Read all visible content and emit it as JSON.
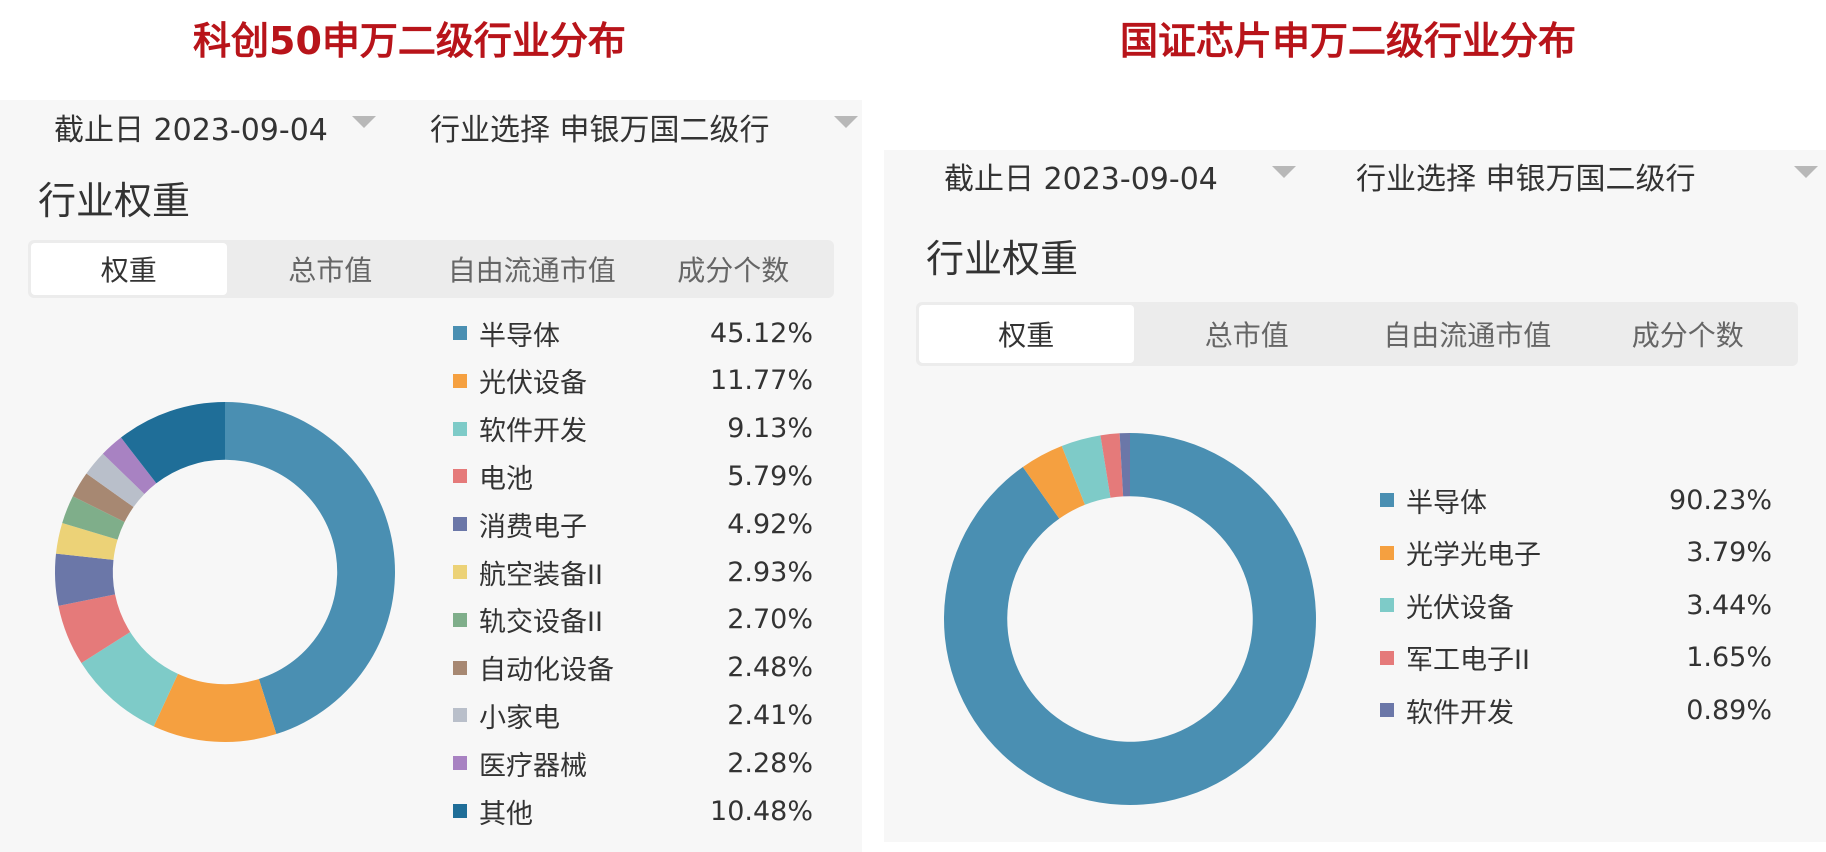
{
  "left": {
    "heading": "科创50申万二级行业分布",
    "date_filter": "截止日 2023-09-04",
    "industry_filter": "行业选择 申银万国二级行",
    "section_title": "行业权重",
    "tabs": [
      "权重",
      "总市值",
      "自由流通市值",
      "成分个数"
    ],
    "active_tab": 0
  },
  "right": {
    "heading": "国证芯片申万二级行业分布",
    "date_filter": "截止日 2023-09-04",
    "industry_filter": "行业选择 申银万国二级行",
    "section_title": "行业权重",
    "tabs": [
      "权重",
      "总市值",
      "自由流通市值",
      "成分个数"
    ],
    "active_tab": 0
  },
  "chart_data": [
    {
      "type": "pie",
      "title": "科创50申万二级行业分布",
      "categories": [
        "半导体",
        "光伏设备",
        "软件开发",
        "电池",
        "消费电子",
        "航空装备II",
        "轨交设备II",
        "自动化设备",
        "小家电",
        "医疗器械",
        "其他"
      ],
      "values": [
        45.12,
        11.77,
        9.13,
        5.79,
        4.92,
        2.93,
        2.7,
        2.48,
        2.41,
        2.28,
        10.48
      ],
      "labels": [
        "45.12%",
        "11.77%",
        "9.13%",
        "5.79%",
        "4.92%",
        "2.93%",
        "2.70%",
        "2.48%",
        "2.41%",
        "2.28%",
        "10.48%"
      ],
      "colors": [
        "#4a8fb2",
        "#f5a040",
        "#7ecbc8",
        "#e57a7a",
        "#6b77a8",
        "#ecd277",
        "#7fae8a",
        "#a78872",
        "#b9bfca",
        "#a882c2",
        "#1f6e98"
      ],
      "legend_position": "right"
    },
    {
      "type": "pie",
      "title": "国证芯片申万二级行业分布",
      "categories": [
        "半导体",
        "光学光电子",
        "光伏设备",
        "军工电子II",
        "软件开发"
      ],
      "values": [
        90.23,
        3.79,
        3.44,
        1.65,
        0.89
      ],
      "labels": [
        "90.23%",
        "3.79%",
        "3.44%",
        "1.65%",
        "0.89%"
      ],
      "colors": [
        "#4a8fb2",
        "#f5a040",
        "#7ecbc8",
        "#e57a7a",
        "#6b77a8"
      ],
      "legend_position": "right"
    }
  ]
}
